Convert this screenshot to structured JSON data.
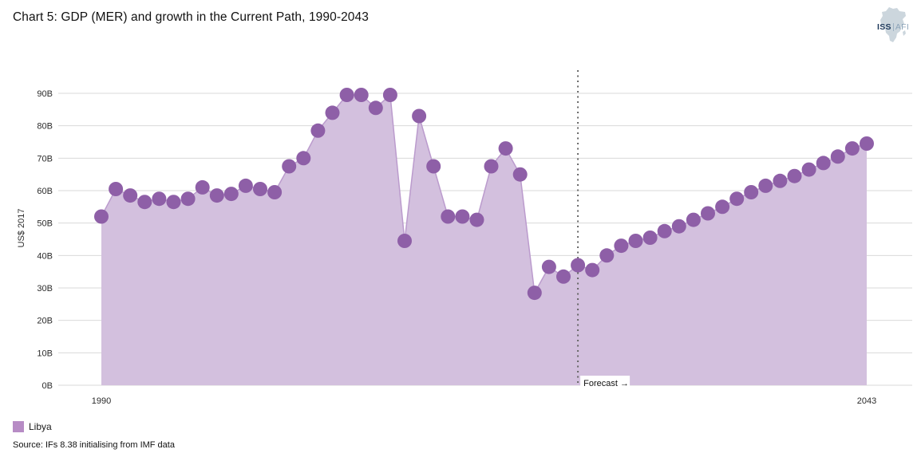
{
  "page": {
    "title": "Chart 5: GDP (MER) and growth in the Current Path, 1990-2043",
    "source": "Source: IFs 8.38 initialising from IMF data"
  },
  "logo": {
    "org": "ISS",
    "sub": "AFI"
  },
  "legend": {
    "items": [
      {
        "label": "Libya"
      }
    ]
  },
  "chart_data": {
    "type": "area",
    "title": "Chart 5: GDP (MER) and growth in the Current Path, 1990-2043",
    "xlabel": "",
    "ylabel": "US$ 2017",
    "ylim": [
      0,
      90
    ],
    "ytick_step": 10,
    "ytick_labels": [
      "0B",
      "10B",
      "20B",
      "30B",
      "40B",
      "50B",
      "60B",
      "70B",
      "80B",
      "90B"
    ],
    "xticks": [
      1990,
      2043
    ],
    "xtick_labels": [
      "1990",
      "2043"
    ],
    "grid": true,
    "legend_position": "bottom-left",
    "forecast": {
      "start_year": 2023,
      "label": "Forecast →"
    },
    "series": [
      {
        "name": "Libya",
        "x": [
          1990,
          1991,
          1992,
          1993,
          1994,
          1995,
          1996,
          1997,
          1998,
          1999,
          2000,
          2001,
          2002,
          2003,
          2004,
          2005,
          2006,
          2007,
          2008,
          2009,
          2010,
          2011,
          2012,
          2013,
          2014,
          2015,
          2016,
          2017,
          2018,
          2019,
          2020,
          2021,
          2022,
          2023,
          2024,
          2025,
          2026,
          2027,
          2028,
          2029,
          2030,
          2031,
          2032,
          2033,
          2034,
          2035,
          2036,
          2037,
          2038,
          2039,
          2040,
          2041,
          2042,
          2043
        ],
        "values": [
          52,
          60.5,
          58.5,
          56.5,
          57.5,
          56.5,
          57.5,
          61,
          58.5,
          59,
          61.5,
          60.5,
          59.5,
          67.5,
          70,
          78.5,
          84,
          89.5,
          89.5,
          85.5,
          89.5,
          44.5,
          83,
          67.5,
          52,
          52,
          51,
          67.5,
          73,
          65,
          28.5,
          36.5,
          33.5,
          37,
          35.5,
          40,
          43,
          44.5,
          45.5,
          47.5,
          49,
          51,
          53,
          55,
          57.5,
          59.5,
          61.5,
          63,
          64.5,
          66.5,
          68.5,
          70.5,
          73,
          74.5
        ]
      }
    ],
    "colors": {
      "marker": "#8e5fa7",
      "area_fill": "#d3c0de",
      "line": "#bb9bcd",
      "legend_swatch": "#b78cc5",
      "gridline": "#d9d9d9",
      "forecast_line": "#666666",
      "tick_text": "#2b2b2b"
    }
  }
}
